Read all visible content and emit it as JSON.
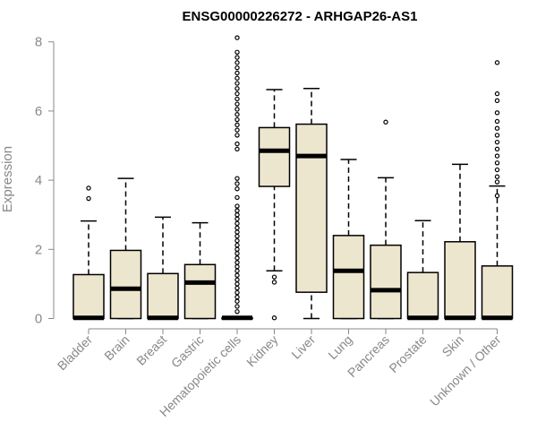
{
  "chart_data": {
    "type": "box",
    "title": "ENSG00000226272 - ARHGAP26-AS1",
    "xlabel": "",
    "ylabel": "Expression",
    "ylim": [
      0,
      8.2
    ],
    "yticks": [
      0,
      2,
      4,
      6,
      8
    ],
    "grid": false,
    "box_fill": "#ede6cf",
    "categories": [
      "Bladder",
      "Brain",
      "Breast",
      "Gastric",
      "Hematopoietic cells",
      "Kidney",
      "Liver",
      "Lung",
      "Pancreas",
      "Prostate",
      "Skin",
      "Unknown / Other"
    ],
    "boxes": [
      {
        "min": 0,
        "q1": 0,
        "median": 0.02,
        "q3": 1.27,
        "max": 2.82,
        "outliers": [
          3.47,
          3.77
        ]
      },
      {
        "min": 0,
        "q1": 0,
        "median": 0.86,
        "q3": 1.97,
        "max": 4.05,
        "outliers": []
      },
      {
        "min": 0,
        "q1": 0,
        "median": 0.02,
        "q3": 1.3,
        "max": 2.93,
        "outliers": []
      },
      {
        "min": 0,
        "q1": 0,
        "median": 1.04,
        "q3": 1.56,
        "max": 2.77,
        "outliers": []
      },
      {
        "min": 0,
        "q1": 0,
        "median": 0.02,
        "q3": 0.02,
        "max": 0.05,
        "outliers": [
          0.2,
          0.35,
          0.5,
          0.62,
          0.75,
          0.88,
          1.0,
          1.12,
          1.25,
          1.38,
          1.5,
          1.62,
          1.75,
          1.88,
          2.0,
          2.12,
          2.25,
          2.38,
          2.5,
          2.62,
          2.75,
          2.88,
          3.0,
          3.12,
          3.25,
          3.5,
          3.75,
          3.9,
          4.05,
          4.9,
          5.05,
          5.3,
          5.45,
          5.6,
          5.75,
          5.9,
          6.05,
          6.2,
          6.35,
          6.5,
          6.65,
          6.8,
          6.95,
          7.1,
          7.25,
          7.4,
          7.55,
          7.7,
          8.12
        ]
      },
      {
        "min": 1.38,
        "q1": 3.82,
        "median": 4.85,
        "q3": 5.52,
        "max": 6.62,
        "outliers": [
          0.02,
          1.05,
          1.2
        ]
      },
      {
        "min": 0,
        "q1": 0.76,
        "median": 4.7,
        "q3": 5.62,
        "max": 6.65,
        "outliers": []
      },
      {
        "min": 0,
        "q1": 0,
        "median": 1.38,
        "q3": 2.4,
        "max": 4.6,
        "outliers": []
      },
      {
        "min": 0,
        "q1": 0,
        "median": 0.82,
        "q3": 2.12,
        "max": 4.07,
        "outliers": [
          5.68
        ]
      },
      {
        "min": 0,
        "q1": 0,
        "median": 0.02,
        "q3": 1.33,
        "max": 2.83,
        "outliers": []
      },
      {
        "min": 0,
        "q1": 0,
        "median": 0.02,
        "q3": 2.22,
        "max": 4.46,
        "outliers": []
      },
      {
        "min": 0,
        "q1": 0,
        "median": 0.02,
        "q3": 1.52,
        "max": 3.83,
        "outliers": [
          3.55,
          3.95,
          4.1,
          4.3,
          4.5,
          4.7,
          4.9,
          5.1,
          5.3,
          5.5,
          5.7,
          5.95,
          6.3,
          6.5,
          7.4
        ]
      }
    ]
  }
}
